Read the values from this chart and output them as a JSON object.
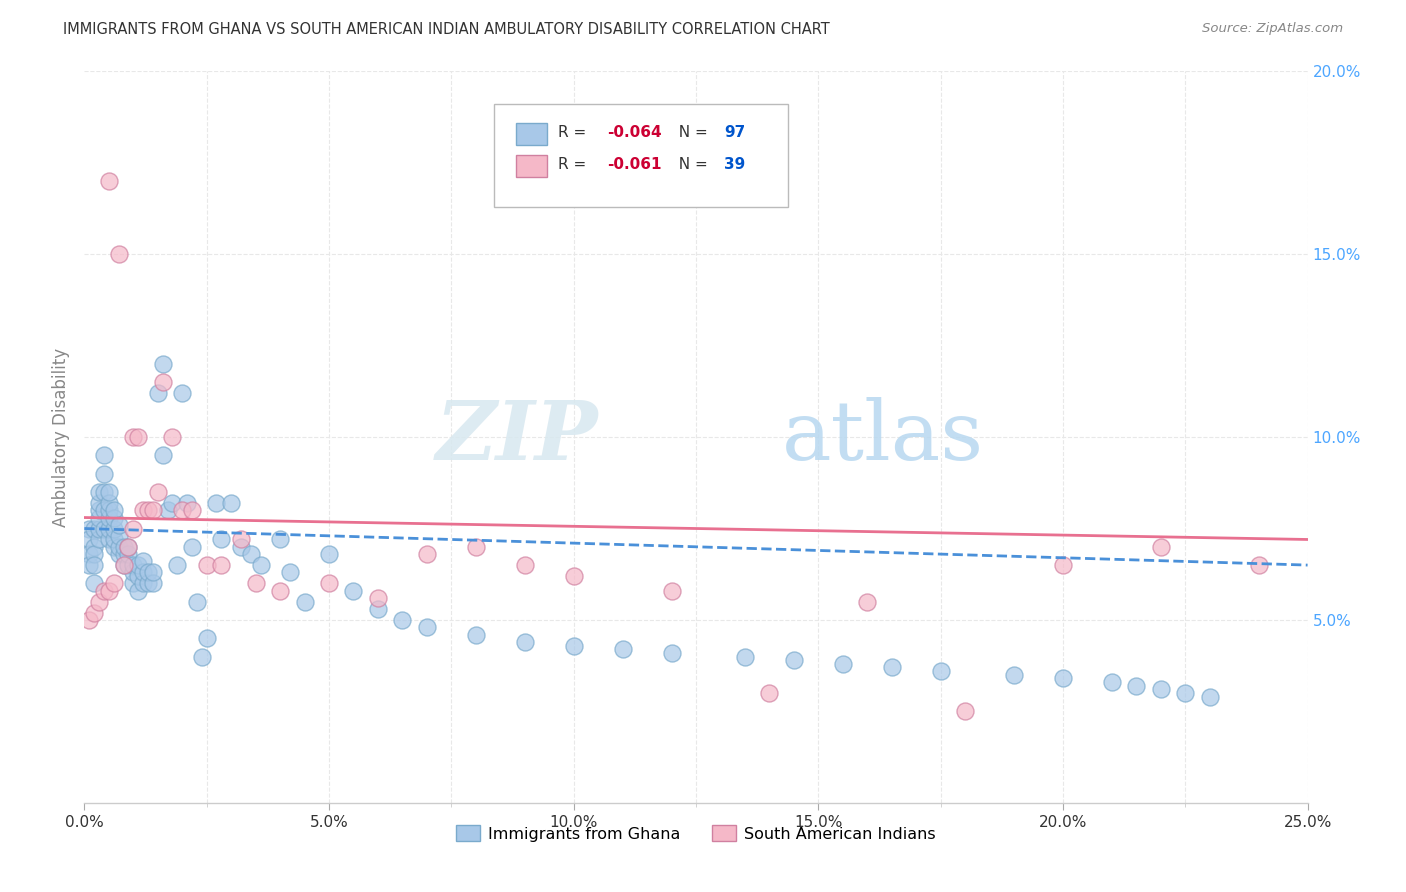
{
  "title": "IMMIGRANTS FROM GHANA VS SOUTH AMERICAN INDIAN AMBULATORY DISABILITY CORRELATION CHART",
  "source": "Source: ZipAtlas.com",
  "ylabel": "Ambulatory Disability",
  "xlabel": "",
  "xlim": [
    0,
    0.25
  ],
  "ylim": [
    0,
    0.2
  ],
  "xticks": [
    0.0,
    0.05,
    0.1,
    0.15,
    0.2,
    0.25
  ],
  "xtick_minor_count": 8,
  "yticks_right": [
    0.05,
    0.1,
    0.15,
    0.2
  ],
  "series1_name": "Immigrants from Ghana",
  "series1_color": "#a8c8e8",
  "series1_edge_color": "#7aaacc",
  "series1_R": -0.064,
  "series1_N": 97,
  "series1_line_color": "#4a90d9",
  "series1_x": [
    0.001,
    0.001,
    0.001,
    0.001,
    0.002,
    0.002,
    0.002,
    0.002,
    0.002,
    0.003,
    0.003,
    0.003,
    0.003,
    0.003,
    0.003,
    0.004,
    0.004,
    0.004,
    0.004,
    0.004,
    0.005,
    0.005,
    0.005,
    0.005,
    0.005,
    0.005,
    0.006,
    0.006,
    0.006,
    0.006,
    0.006,
    0.007,
    0.007,
    0.007,
    0.007,
    0.008,
    0.008,
    0.008,
    0.009,
    0.009,
    0.009,
    0.01,
    0.01,
    0.01,
    0.011,
    0.011,
    0.011,
    0.012,
    0.012,
    0.012,
    0.013,
    0.013,
    0.014,
    0.014,
    0.015,
    0.016,
    0.016,
    0.017,
    0.018,
    0.019,
    0.02,
    0.021,
    0.022,
    0.023,
    0.024,
    0.025,
    0.027,
    0.028,
    0.03,
    0.032,
    0.034,
    0.036,
    0.04,
    0.042,
    0.045,
    0.05,
    0.055,
    0.06,
    0.065,
    0.07,
    0.08,
    0.09,
    0.1,
    0.11,
    0.12,
    0.135,
    0.145,
    0.155,
    0.165,
    0.175,
    0.19,
    0.2,
    0.21,
    0.215,
    0.22,
    0.225,
    0.23
  ],
  "series1_y": [
    0.075,
    0.072,
    0.068,
    0.065,
    0.075,
    0.07,
    0.068,
    0.065,
    0.06,
    0.072,
    0.075,
    0.078,
    0.08,
    0.082,
    0.085,
    0.075,
    0.08,
    0.085,
    0.09,
    0.095,
    0.072,
    0.075,
    0.078,
    0.08,
    0.082,
    0.085,
    0.07,
    0.072,
    0.075,
    0.078,
    0.08,
    0.068,
    0.07,
    0.073,
    0.076,
    0.065,
    0.068,
    0.07,
    0.065,
    0.068,
    0.07,
    0.06,
    0.063,
    0.065,
    0.058,
    0.062,
    0.065,
    0.06,
    0.063,
    0.066,
    0.06,
    0.063,
    0.06,
    0.063,
    0.112,
    0.095,
    0.12,
    0.08,
    0.082,
    0.065,
    0.112,
    0.082,
    0.07,
    0.055,
    0.04,
    0.045,
    0.082,
    0.072,
    0.082,
    0.07,
    0.068,
    0.065,
    0.072,
    0.063,
    0.055,
    0.068,
    0.058,
    0.053,
    0.05,
    0.048,
    0.046,
    0.044,
    0.043,
    0.042,
    0.041,
    0.04,
    0.039,
    0.038,
    0.037,
    0.036,
    0.035,
    0.034,
    0.033,
    0.032,
    0.031,
    0.03,
    0.029
  ],
  "series2_name": "South American Indians",
  "series2_color": "#f5b8c8",
  "series2_edge_color": "#d080a0",
  "series2_R": -0.061,
  "series2_N": 39,
  "series2_line_color": "#e87090",
  "series2_x": [
    0.001,
    0.002,
    0.003,
    0.004,
    0.005,
    0.005,
    0.006,
    0.007,
    0.008,
    0.009,
    0.01,
    0.01,
    0.011,
    0.012,
    0.013,
    0.014,
    0.015,
    0.016,
    0.018,
    0.02,
    0.022,
    0.025,
    0.028,
    0.032,
    0.035,
    0.04,
    0.05,
    0.06,
    0.07,
    0.08,
    0.09,
    0.1,
    0.12,
    0.14,
    0.16,
    0.18,
    0.2,
    0.22,
    0.24
  ],
  "series2_y": [
    0.05,
    0.052,
    0.055,
    0.058,
    0.058,
    0.17,
    0.06,
    0.15,
    0.065,
    0.07,
    0.075,
    0.1,
    0.1,
    0.08,
    0.08,
    0.08,
    0.085,
    0.115,
    0.1,
    0.08,
    0.08,
    0.065,
    0.065,
    0.072,
    0.06,
    0.058,
    0.06,
    0.056,
    0.068,
    0.07,
    0.065,
    0.062,
    0.058,
    0.03,
    0.055,
    0.025,
    0.065,
    0.07,
    0.065
  ],
  "background_color": "#ffffff",
  "grid_color": "#e8e8e8",
  "title_color": "#333333",
  "axis_color": "#4da6ff",
  "watermark_zip": "ZIP",
  "watermark_atlas": "atlas",
  "watermark_color": "#ddeeff",
  "legend_r_color": "#cc0033",
  "legend_n_color": "#0055cc"
}
